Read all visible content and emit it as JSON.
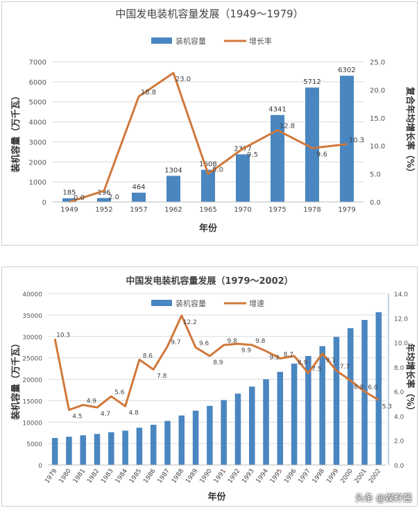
{
  "chart_data": [
    {
      "type": "bar+line",
      "title": "中国发电装机容量发展（1949～1979）",
      "xlabel": "年份",
      "ylabel": "装机容量（万千瓦）",
      "y2label": "复合年均增长率（%）",
      "categories": [
        "1949",
        "1952",
        "1957",
        "1962",
        "1965",
        "1970",
        "1975",
        "1978",
        "1979"
      ],
      "series": [
        {
          "name": "装机容量",
          "kind": "bar",
          "values": [
            185,
            196,
            464,
            1304,
            1608,
            2377,
            4341,
            5712,
            6302
          ],
          "color": "#4a86c0"
        },
        {
          "name": "增长率",
          "kind": "line",
          "axis": "right",
          "values": [
            0.0,
            2.0,
            18.8,
            23.0,
            5.0,
            9.5,
            12.8,
            9.6,
            10.3
          ],
          "color": "#d0773a"
        }
      ],
      "ylim": [
        0,
        7000
      ],
      "yticks": [
        0,
        1000,
        2000,
        3000,
        4000,
        5000,
        6000,
        7000
      ],
      "y2lim": [
        0,
        25
      ],
      "y2ticks": [
        "0.0",
        "5.0",
        "10.0",
        "15.0",
        "20.0",
        "25.0"
      ],
      "legend": "top",
      "grid": true,
      "bar_labels": true
    },
    {
      "type": "bar+line",
      "title": "中国发电装机容量发展（1979～2002）",
      "xlabel": "年份",
      "ylabel": "装机容量（万千瓦）",
      "y2label": "年均增长率（%）",
      "categories": [
        "1979",
        "1980",
        "1981",
        "1982",
        "1983",
        "1984",
        "1985",
        "1986",
        "1987",
        "1988",
        "1989",
        "1990",
        "1991",
        "1992",
        "1993",
        "1994",
        "1995",
        "1996",
        "1997",
        "1998",
        "1999",
        "2000",
        "2001",
        "2002"
      ],
      "series": [
        {
          "name": "装机容量",
          "kind": "bar",
          "values": [
            6302,
            6587,
            6913,
            7236,
            7644,
            8012,
            8705,
            9382,
            10290,
            11550,
            12664,
            13789,
            15147,
            16653,
            18291,
            19990,
            21722,
            23654,
            25424,
            27729,
            29877,
            31932,
            33849,
            35657
          ],
          "color": "#4a86c0"
        },
        {
          "name": "增速",
          "kind": "line",
          "axis": "right",
          "values": [
            10.3,
            4.5,
            4.9,
            4.7,
            5.6,
            4.8,
            8.6,
            7.8,
            9.7,
            12.2,
            9.6,
            8.9,
            9.8,
            9.9,
            9.8,
            9.3,
            8.7,
            8.9,
            7.5,
            9.1,
            7.7,
            6.9,
            6.0,
            5.3
          ],
          "color": "#d0773a"
        }
      ],
      "ylim": [
        0,
        40000
      ],
      "yticks": [
        0,
        5000,
        10000,
        15000,
        20000,
        25000,
        30000,
        35000,
        40000
      ],
      "y2lim": [
        0,
        14
      ],
      "y2ticks": [
        "0.0",
        "2.0",
        "4.0",
        "6.0",
        "8.0",
        "10.0",
        "12.0",
        "14.0"
      ],
      "legend": "top",
      "grid": true,
      "bar_labels": false
    }
  ],
  "watermark": "头条 @娱籽酱"
}
